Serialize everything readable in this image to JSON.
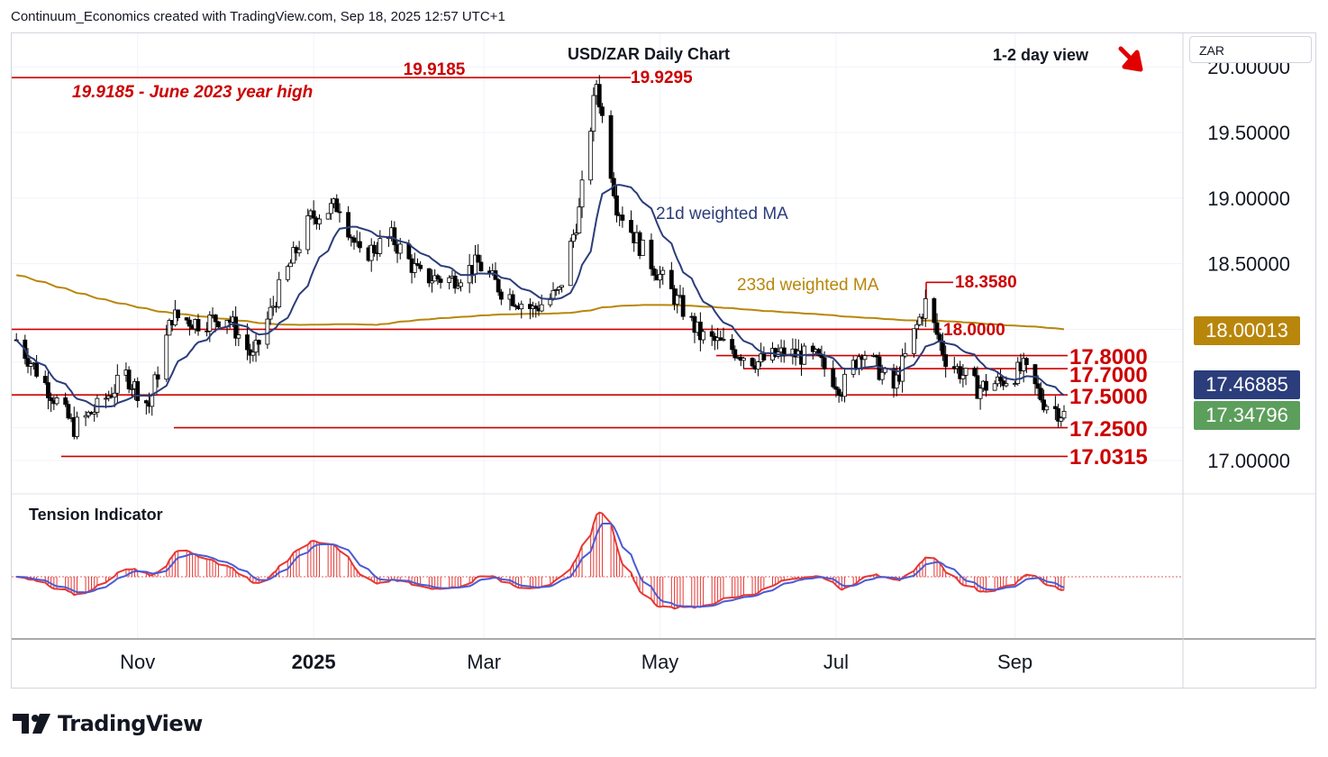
{
  "header": {
    "credit": "Continuum_Economics created with TradingView.com, Sep 18, 2025 12:57 UTC+1"
  },
  "footer": {
    "brand": "TradingView"
  },
  "price_scale": {
    "currency": "ZAR"
  },
  "badges": {
    "ma233": {
      "value": "18.00013",
      "color": "#b8860b"
    },
    "ma21": {
      "value": "17.46885",
      "color": "#2b3d7a"
    },
    "last": {
      "value": "17.34796",
      "color": "#5c9e5c"
    }
  },
  "chart_data": [
    {
      "type": "candlestick",
      "title": "USD/ZAR Daily Chart",
      "view": "1-2 day view",
      "view_direction": "down",
      "y_ticks": [
        "20.00000",
        "19.50000",
        "19.00000",
        "18.50000",
        "17.00000"
      ],
      "x_ticks": [
        "Nov",
        "2025",
        "Mar",
        "May",
        "Jul",
        "Sep"
      ],
      "grid": true,
      "ylim": [
        16.75,
        20.25
      ],
      "indicators": [
        {
          "name": "21d weighted MA",
          "color": "#2b3d7a",
          "last": 17.46885
        },
        {
          "name": "233d weighted MA",
          "color": "#b8860b",
          "last": 18.00013
        }
      ],
      "levels": [
        {
          "label": "19.9185",
          "value": 19.9185
        },
        {
          "label": "19.9295",
          "value": 19.9295
        },
        {
          "label": "18.3580",
          "value": 18.358
        },
        {
          "label": "18.0000",
          "value": 18.0
        },
        {
          "label": "17.8000",
          "value": 17.8
        },
        {
          "label": "17.7000",
          "value": 17.7
        },
        {
          "label": "17.5000",
          "value": 17.5
        },
        {
          "label": "17.2500",
          "value": 17.25
        },
        {
          "label": "17.0315",
          "value": 17.0315
        }
      ],
      "annotations": [
        "19.9185 - June 2023 year high"
      ],
      "close_path": [
        [
          "2024-09-20",
          17.92
        ],
        [
          "2024-10-01",
          17.55
        ],
        [
          "2024-10-10",
          17.25
        ],
        [
          "2024-10-18",
          17.4
        ],
        [
          "2024-10-28",
          17.65
        ],
        [
          "2024-11-05",
          17.42
        ],
        [
          "2024-11-13",
          18.1
        ],
        [
          "2024-11-22",
          18.05
        ],
        [
          "2024-12-02",
          18.1
        ],
        [
          "2024-12-11",
          17.78
        ],
        [
          "2024-12-20",
          18.3
        ],
        [
          "2024-12-31",
          18.85
        ],
        [
          "2025-01-10",
          18.95
        ],
        [
          "2025-01-17",
          18.55
        ],
        [
          "2025-01-28",
          18.7
        ],
        [
          "2025-02-07",
          18.4
        ],
        [
          "2025-02-18",
          18.38
        ],
        [
          "2025-02-27",
          18.5
        ],
        [
          "2025-03-07",
          18.3
        ],
        [
          "2025-03-18",
          18.15
        ],
        [
          "2025-03-27",
          18.28
        ],
        [
          "2025-04-03",
          18.9
        ],
        [
          "2025-04-09",
          19.88
        ],
        [
          "2025-04-16",
          18.95
        ],
        [
          "2025-04-25",
          18.6
        ],
        [
          "2025-05-06",
          18.25
        ],
        [
          "2025-05-15",
          17.95
        ],
        [
          "2025-05-26",
          17.85
        ],
        [
          "2025-06-04",
          17.75
        ],
        [
          "2025-06-13",
          17.82
        ],
        [
          "2025-06-24",
          17.78
        ],
        [
          "2025-07-03",
          17.55
        ],
        [
          "2025-07-10",
          17.85
        ],
        [
          "2025-07-21",
          17.55
        ],
        [
          "2025-08-01",
          18.2
        ],
        [
          "2025-08-08",
          17.78
        ],
        [
          "2025-08-19",
          17.55
        ],
        [
          "2025-08-27",
          17.6
        ],
        [
          "2025-09-04",
          17.7
        ],
        [
          "2025-09-11",
          17.45
        ],
        [
          "2025-09-18",
          17.35
        ]
      ]
    },
    {
      "type": "histogram",
      "title": "Tension Indicator",
      "series": [
        {
          "name": "",
          "color": "#e53935"
        },
        {
          "name": "",
          "color": "#4a5bd6"
        }
      ]
    }
  ]
}
